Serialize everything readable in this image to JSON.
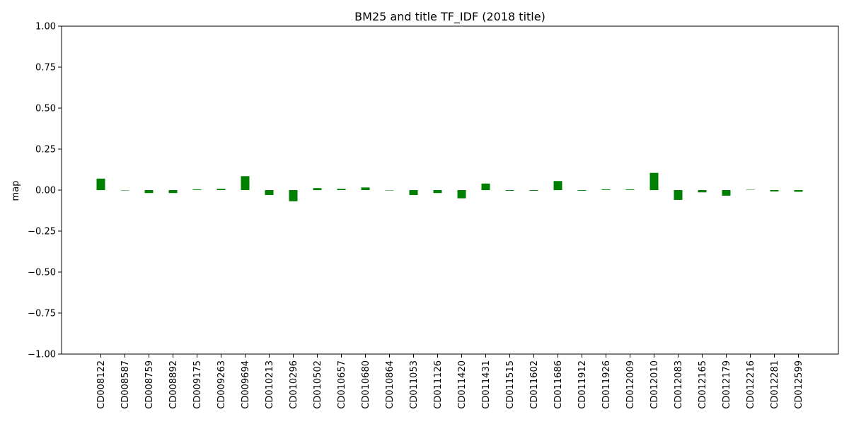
{
  "chart_data": {
    "type": "bar",
    "title": "BM25 and title TF_IDF (2018 title)",
    "xlabel": "",
    "ylabel": "map",
    "ylim": [
      -1.0,
      1.0
    ],
    "yticks": [
      "−1.00",
      "−0.75",
      "−0.50",
      "−0.25",
      "0.00",
      "0.25",
      "0.50",
      "0.75",
      "1.00"
    ],
    "ytick_values": [
      -1.0,
      -0.75,
      -0.5,
      -0.25,
      0.0,
      0.25,
      0.5,
      0.75,
      1.0
    ],
    "grid": false,
    "bar_color": "#008000",
    "categories": [
      "CD008122",
      "CD008587",
      "CD008759",
      "CD008892",
      "CD009175",
      "CD009263",
      "CD009694",
      "CD010213",
      "CD010296",
      "CD010502",
      "CD010657",
      "CD010680",
      "CD010864",
      "CD011053",
      "CD011126",
      "CD011420",
      "CD011431",
      "CD011515",
      "CD011602",
      "CD011686",
      "CD011912",
      "CD011926",
      "CD012009",
      "CD012010",
      "CD012083",
      "CD012165",
      "CD012179",
      "CD012216",
      "CD012281",
      "CD012599"
    ],
    "values": [
      0.07,
      0.0,
      -0.018,
      -0.018,
      0.004,
      0.008,
      0.085,
      -0.03,
      -0.068,
      0.012,
      0.008,
      0.016,
      0.0,
      -0.03,
      -0.018,
      -0.05,
      0.04,
      -0.004,
      -0.004,
      0.055,
      -0.004,
      0.004,
      0.004,
      0.105,
      -0.06,
      -0.014,
      -0.034,
      0.002,
      -0.008,
      -0.01
    ]
  }
}
